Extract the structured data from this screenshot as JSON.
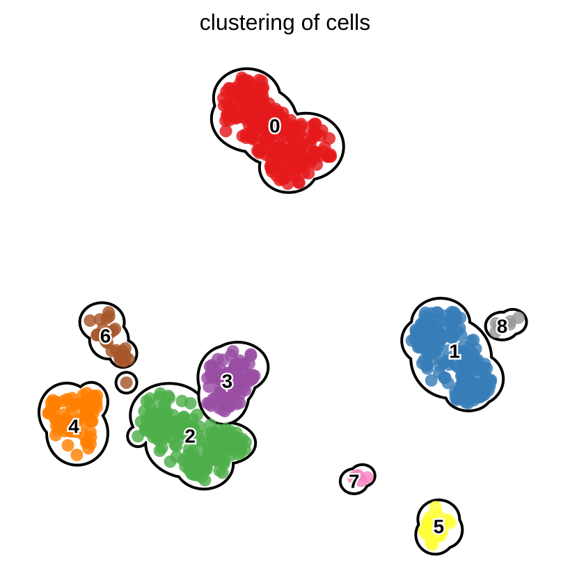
{
  "chart_data": {
    "type": "scatter",
    "title": "clustering of cells",
    "xlabel": "",
    "ylabel": "",
    "axes_visible": false,
    "grid": false,
    "legend": "on data",
    "xlim": [
      0,
      10
    ],
    "ylim": [
      0,
      10
    ],
    "clusters": [
      {
        "label": "0",
        "color": "#e41a1c",
        "center": [
          4.8,
          8.6
        ],
        "points": 260
      },
      {
        "label": "1",
        "color": "#377eb8",
        "center": [
          8.2,
          4.1
        ],
        "points": 220
      },
      {
        "label": "2",
        "color": "#4daf4a",
        "center": [
          3.2,
          2.4
        ],
        "points": 200
      },
      {
        "label": "3",
        "color": "#984ea3",
        "center": [
          3.9,
          3.5
        ],
        "points": 90
      },
      {
        "label": "4",
        "color": "#ff7f00",
        "center": [
          1.0,
          2.6
        ],
        "points": 70
      },
      {
        "label": "5",
        "color": "#ffff33",
        "center": [
          7.9,
          0.6
        ],
        "points": 18
      },
      {
        "label": "6",
        "color": "#a65628",
        "center": [
          1.6,
          4.4
        ],
        "points": 25
      },
      {
        "label": "7",
        "color": "#f781bf",
        "center": [
          6.3,
          1.5
        ],
        "points": 5
      },
      {
        "label": "8",
        "color": "#999999",
        "center": [
          9.1,
          4.6
        ],
        "points": 8
      }
    ]
  }
}
